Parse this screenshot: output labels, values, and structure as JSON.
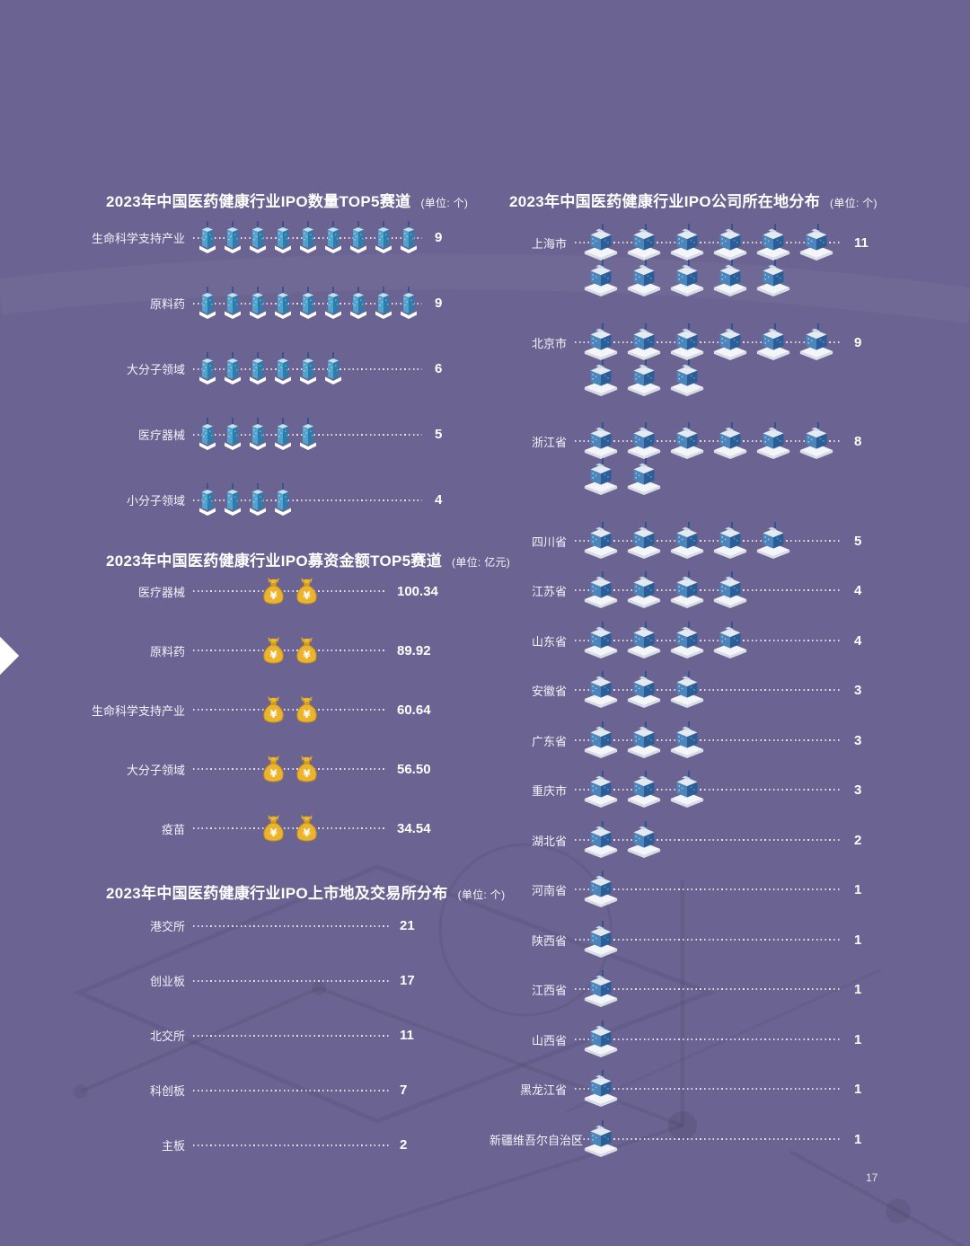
{
  "page": {
    "page_number": "17"
  },
  "colors": {
    "background": "#6B6391",
    "title_text": "#FFFFFF",
    "value_text": "#FFFFFF",
    "dotted_leader": "#FFFFFF",
    "tower_blue": "#4FA3CC",
    "block_blue": "#4C85BC",
    "money_gold": "#ECB42C",
    "antenna_navy": "#2B4E8F"
  },
  "chart_data": [
    {
      "type": "pictogram-bar",
      "icon": "office-tower",
      "title": "2023年中国医药健康行业IPO数量TOP5赛道",
      "unit": "(单位: 个)",
      "categories": [
        "生命科学支持产业",
        "原料药",
        "大分子领域",
        "医疗器械",
        "小分子领域"
      ],
      "values": [
        9,
        9,
        6,
        5,
        4
      ]
    },
    {
      "type": "pictogram-bar",
      "icon": "money-bag",
      "icons_per_row": 2,
      "title": "2023年中国医药健康行业IPO募资金额TOP5赛道",
      "unit": "(单位: 亿元)",
      "categories": [
        "医疗器械",
        "原料药",
        "生命科学支持产业",
        "大分子领域",
        "疫苗"
      ],
      "values": [
        "100.34",
        "89.92",
        "60.64",
        "56.50",
        "34.54"
      ]
    },
    {
      "type": "dot-leader",
      "title": "2023年中国医药健康行业IPO上市地及交易所分布",
      "unit": "(单位: 个)",
      "categories": [
        "港交所",
        "创业板",
        "北交所",
        "科创板",
        "主板"
      ],
      "values": [
        21,
        17,
        11,
        7,
        2
      ]
    },
    {
      "type": "pictogram-bar",
      "icon": "office-block",
      "max_icons_per_row": 6,
      "title": "2023年中国医药健康行业IPO公司所在地分布",
      "unit": "(单位: 个)",
      "categories": [
        "上海市",
        "北京市",
        "浙江省",
        "四川省",
        "江苏省",
        "山东省",
        "安徽省",
        "广东省",
        "重庆市",
        "湖北省",
        "河南省",
        "陕西省",
        "江西省",
        "山西省",
        "黑龙江省",
        "新疆维吾尔自治区"
      ],
      "values": [
        11,
        9,
        8,
        5,
        4,
        4,
        3,
        3,
        3,
        2,
        1,
        1,
        1,
        1,
        1,
        1
      ]
    }
  ]
}
